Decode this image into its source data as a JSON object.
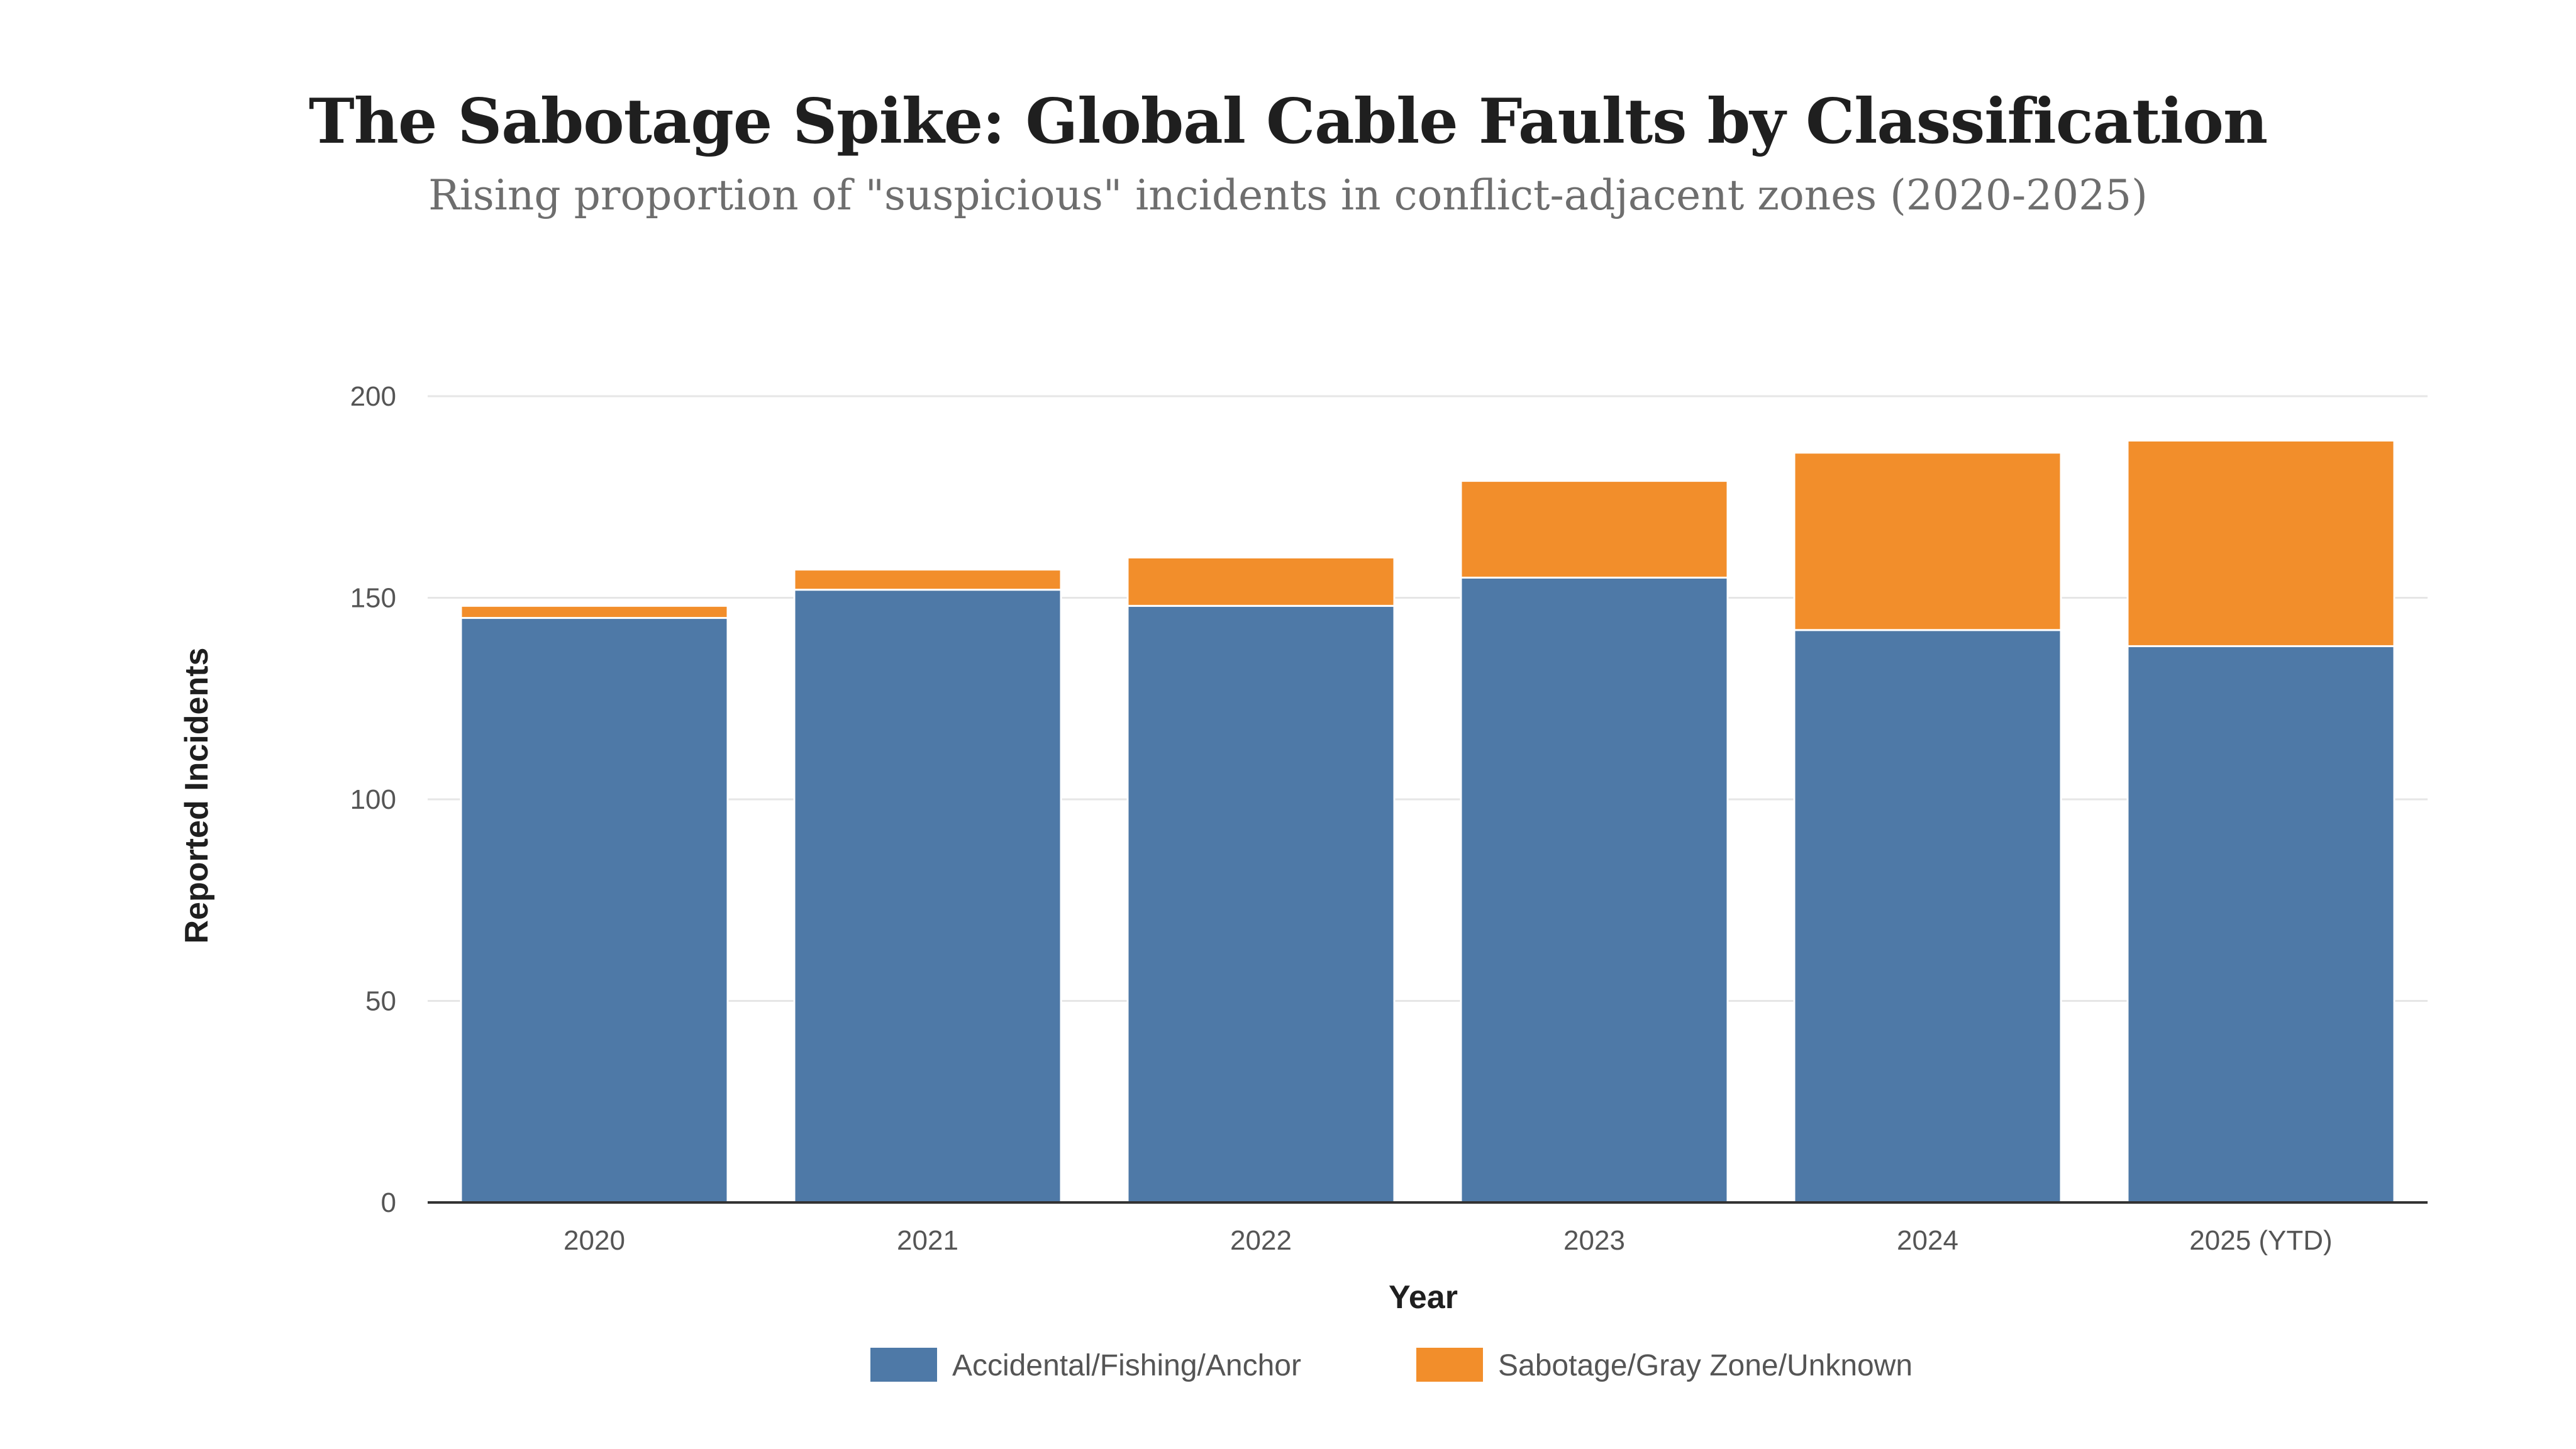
{
  "title": "The Sabotage Spike: Global Cable Faults by Classification",
  "subtitle": "Rising proportion of \"suspicious\" incidents in conflict-adjacent zones (2020-2025)",
  "colors": {
    "accidental": "#4e79a7",
    "sabotage": "#f28e2b",
    "grid": "#e6e6e6",
    "axis": "#333333"
  },
  "chart_data": {
    "type": "bar",
    "stacked": true,
    "title": "The Sabotage Spike: Global Cable Faults by Classification",
    "subtitle": "Rising proportion of \"suspicious\" incidents in conflict-adjacent zones (2020-2025)",
    "xlabel": "Year",
    "ylabel": "Reported Incidents",
    "ylim": [
      0,
      200
    ],
    "yticks": [
      0,
      50,
      100,
      150,
      200
    ],
    "grid": true,
    "legend_position": "bottom",
    "categories": [
      "2020",
      "2021",
      "2022",
      "2023",
      "2024",
      "2025 (YTD)"
    ],
    "series": [
      {
        "name": "Accidental/Fishing/Anchor",
        "color": "#4e79a7",
        "values": [
          145,
          152,
          148,
          155,
          142,
          138
        ]
      },
      {
        "name": "Sabotage/Gray Zone/Unknown",
        "color": "#f28e2b",
        "values": [
          3,
          5,
          12,
          24,
          44,
          51
        ]
      }
    ]
  }
}
